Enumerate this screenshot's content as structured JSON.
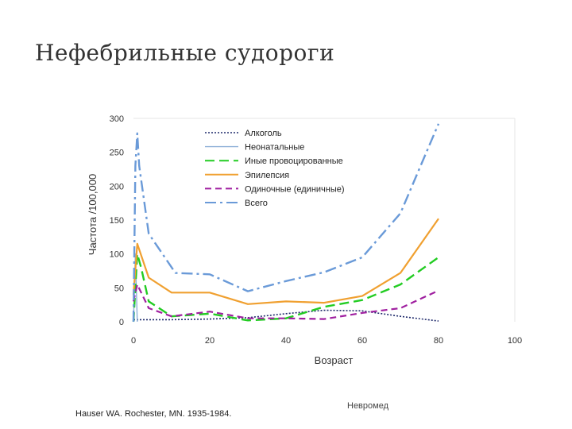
{
  "slide": {
    "title": "Нефебрильные судороги",
    "source": "Hauser WA. Rochester, MN. 1935-1984.",
    "org": "Невромед"
  },
  "chart_data": {
    "type": "line",
    "title": "",
    "xlabel": "Возраст",
    "ylabel": "Частота /100,000",
    "xlim": [
      0,
      100
    ],
    "ylim": [
      0,
      300
    ],
    "xticks": [
      0,
      20,
      40,
      60,
      80,
      100
    ],
    "yticks": [
      0,
      50,
      100,
      150,
      200,
      250,
      300
    ],
    "grid": false,
    "legend_position": "top",
    "series": [
      {
        "name": "Алкоголь",
        "color": "#1f2a6b",
        "dash": "2,2",
        "width": 1.6,
        "x": [
          0,
          1,
          5,
          10,
          20,
          30,
          40,
          50,
          60,
          70,
          80
        ],
        "y": [
          3,
          3,
          3,
          3,
          4,
          6,
          12,
          17,
          16,
          8,
          1
        ]
      },
      {
        "name": "Неонатальные",
        "color": "#8fb0d8",
        "dash": "",
        "width": 1.4,
        "x": [
          0,
          0.5,
          1
        ],
        "y": [
          0,
          100,
          0
        ]
      },
      {
        "name": "Иные провоцированные",
        "color": "#22cc22",
        "dash": "12,6",
        "width": 2.4,
        "x": [
          0,
          1,
          2,
          4,
          10,
          20,
          30,
          40,
          50,
          60,
          70,
          80
        ],
        "y": [
          0,
          100,
          80,
          30,
          8,
          12,
          2,
          5,
          22,
          32,
          55,
          95
        ]
      },
      {
        "name": "Эпилепсия",
        "color": "#f0a030",
        "dash": "",
        "width": 2.2,
        "x": [
          0,
          1,
          4,
          10,
          20,
          30,
          40,
          50,
          60,
          70,
          80
        ],
        "y": [
          40,
          115,
          65,
          43,
          43,
          26,
          30,
          28,
          38,
          72,
          152
        ]
      },
      {
        "name": "Одиночные (единичные)",
        "color": "#a020a0",
        "dash": "8,5",
        "width": 2.2,
        "x": [
          0,
          1,
          4,
          10,
          20,
          30,
          40,
          50,
          60,
          70,
          80
        ],
        "y": [
          30,
          55,
          20,
          8,
          15,
          5,
          5,
          4,
          13,
          20,
          46
        ]
      },
      {
        "name": "Всего",
        "color": "#6a9ad8",
        "dash": "14,5,3,5",
        "width": 2.4,
        "x": [
          0,
          0.5,
          1,
          1.5,
          4,
          11,
          20,
          30,
          40,
          50,
          60,
          70,
          80
        ],
        "y": [
          0,
          230,
          278,
          230,
          130,
          72,
          70,
          45,
          60,
          73,
          95,
          160,
          292
        ]
      }
    ]
  }
}
